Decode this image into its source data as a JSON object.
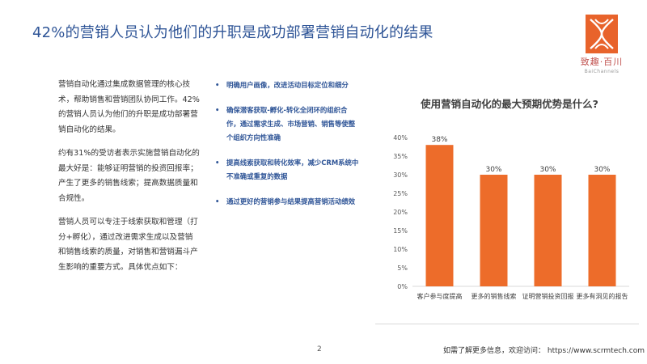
{
  "page": {
    "title": "42%的营销人员认为他们的升职是成功部署营销自动化的结果",
    "page_number": "2",
    "footer": "如需了解更多信息，欢迎访问： https://www.scrmtech.com"
  },
  "logo": {
    "name": "致趣·百川",
    "sub": "BaiChannels",
    "color": "#e8632b"
  },
  "left_text": {
    "paragraphs": [
      "营销自动化通过集成数据管理的核心技术，帮助销售和营销团队协同工作。42%的营销人员认为他们的升职是成功部署营销自动化的结果。",
      "约有31%的受访者表示实施营销自动化的最大好是：能够证明营销的投资回报率；产生了更多的销售线索；提高数据质量和合规性。",
      "营销人员可以专注于线索获取和管理（打分+孵化），通过改进需求生成以及营销和销售线索的质量，对销售和营销漏斗产生影响的重要方式。具体优点如下："
    ]
  },
  "bullets": [
    "明确用户画像，改进活动目标定位和细分",
    "确保潜客获取-孵化-转化全闭环的组织合作，通过需求生成、市场营销、销售等使整个组织方向性准确",
    "提高线索获取和转化效率，减少CRM系统中不准确或重复的数据",
    "通过更好的营销参与结果提高营销活动绩效"
  ],
  "chart_data": {
    "type": "bar",
    "title": "使用营销自动化的最大预期优势是什么?",
    "categories": [
      "客户参与度提高",
      "更多的销售线索",
      "证明营销投资回报",
      "更多有洞见的报告"
    ],
    "values": [
      38,
      30,
      30,
      30
    ],
    "value_labels": [
      "38%",
      "30%",
      "30%",
      "30%"
    ],
    "ylim": [
      0,
      40
    ],
    "yticks": [
      "0%",
      "5%",
      "10%",
      "15%",
      "20%",
      "25%",
      "30%",
      "35%",
      "40%"
    ],
    "xlabel": "",
    "ylabel": "",
    "grid": false,
    "bar_color": "#ed6c2a"
  }
}
